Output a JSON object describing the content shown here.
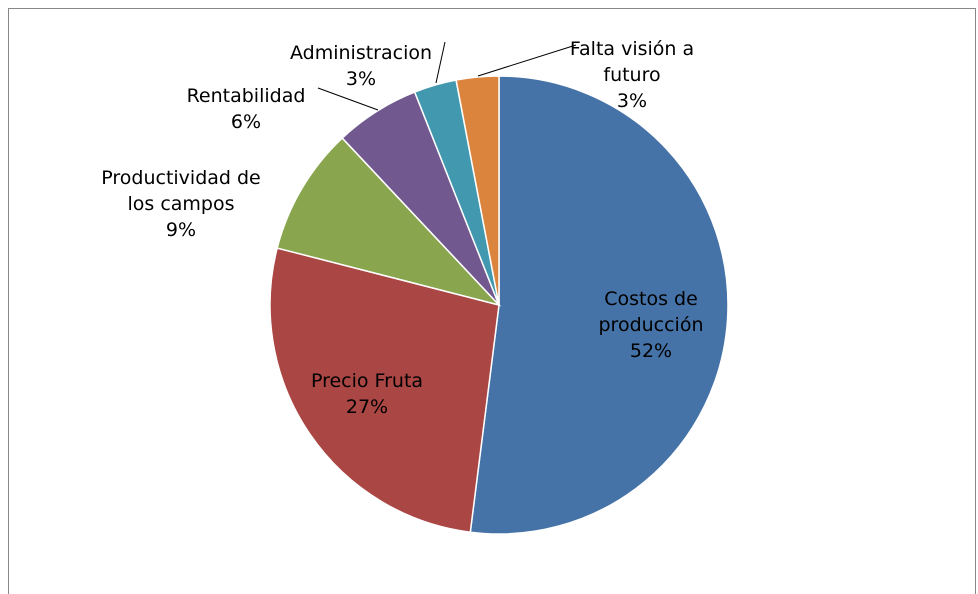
{
  "chart_data": {
    "type": "pie",
    "categories": [
      "Costos de producción",
      "Precio Fruta",
      "Productividad de los campos",
      "Rentabilidad",
      "Administracion",
      "Falta visión a futuro"
    ],
    "values": [
      52,
      27,
      9,
      6,
      3,
      3
    ],
    "value_labels": [
      "52%",
      "27%",
      "9%",
      "6%",
      "3%",
      "3%"
    ],
    "colors": [
      "#4572a7",
      "#aa4643",
      "#89a54e",
      "#71588f",
      "#4198af",
      "#db843d"
    ]
  }
}
